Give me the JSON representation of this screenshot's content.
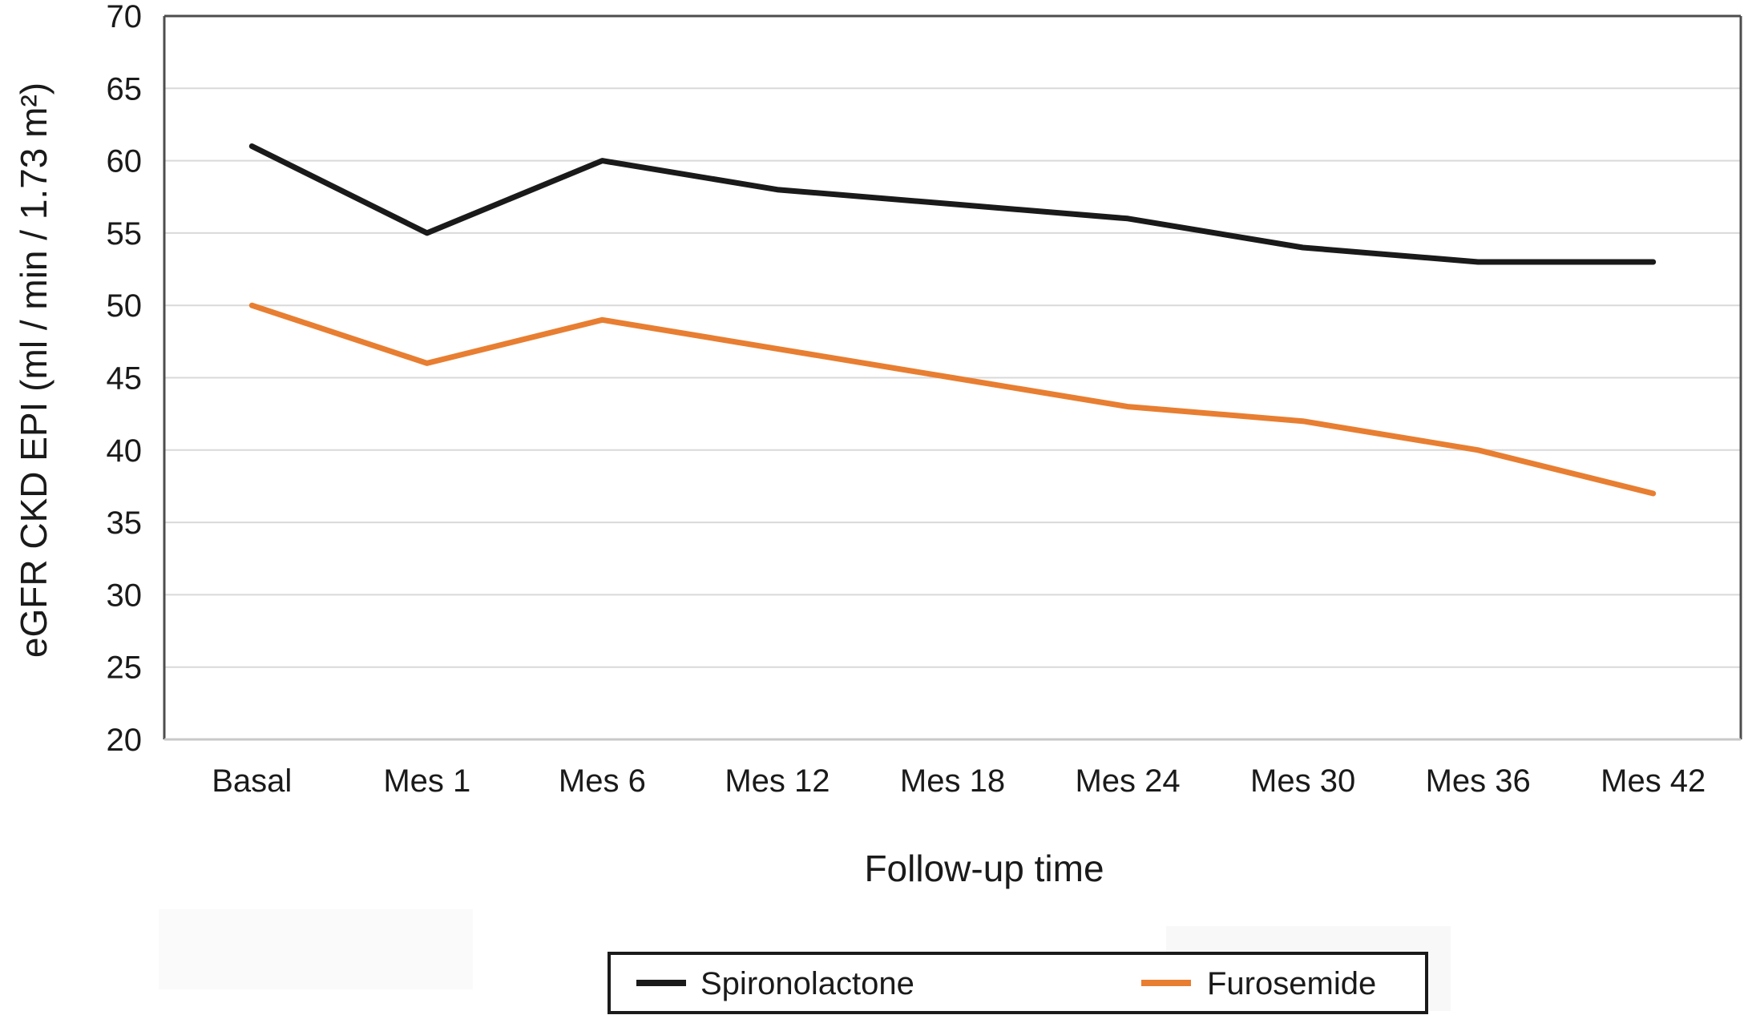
{
  "chart_data": {
    "type": "line",
    "title": "",
    "categories": [
      "Basal",
      "Mes 1",
      "Mes 6",
      "Mes 12",
      "Mes 18",
      "Mes 24",
      "Mes 30",
      "Mes 36",
      "Mes 42"
    ],
    "series": [
      {
        "name": "Spironolactone",
        "color": "#1a1a1a",
        "values": [
          61,
          55,
          60,
          58,
          57,
          56,
          54,
          53,
          53
        ]
      },
      {
        "name": "Furosemide",
        "color": "#e87e31",
        "values": [
          50,
          46,
          49,
          47,
          45,
          43,
          42,
          40,
          37
        ]
      }
    ],
    "xlabel": "Follow-up time",
    "ylabel": "eGFR CKD EPI (ml / min / 1.73 m²)",
    "ylim": [
      20,
      70
    ],
    "ytick_step": 5,
    "yticks": [
      20,
      25,
      30,
      35,
      40,
      45,
      50,
      55,
      60,
      65,
      70
    ],
    "grid": "horizontal",
    "legend_position": "bottom"
  },
  "colors": {
    "background": "#ffffff",
    "gridline": "#d9d9d9",
    "frame_dark": "#4d4d4d",
    "axis_bottom": "#c9c9c9",
    "text": "#1a1a1a",
    "legend_border": "#1a1a1a",
    "artifact_fill": "#fafafa"
  }
}
